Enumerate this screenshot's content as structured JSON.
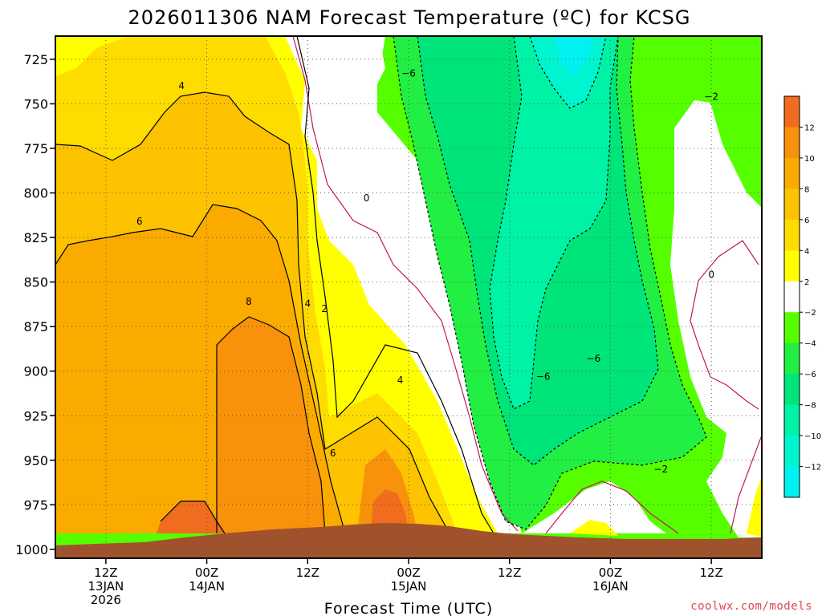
{
  "chart_data": {
    "type": "contour",
    "title": "2026011306 NAM Forecast Temperature (ºC) for KCSG",
    "xlabel": "Forecast Time (UTC)",
    "ylabel": "",
    "y_axis": {
      "scale": "pressure (inverted)",
      "ticks": [
        725,
        750,
        775,
        800,
        825,
        850,
        875,
        900,
        925,
        950,
        975,
        1000
      ],
      "range": [
        1005,
        712
      ]
    },
    "x_axis": {
      "range_hours": [
        0,
        84
      ],
      "ticks": [
        {
          "hour": 6,
          "lines": [
            "12Z",
            "13JAN",
            "2026"
          ]
        },
        {
          "hour": 18,
          "lines": [
            "00Z",
            "14JAN"
          ]
        },
        {
          "hour": 30,
          "lines": [
            "12Z"
          ]
        },
        {
          "hour": 42,
          "lines": [
            "00Z",
            "15JAN"
          ]
        },
        {
          "hour": 54,
          "lines": [
            "12Z"
          ]
        },
        {
          "hour": 66,
          "lines": [
            "00Z",
            "16JAN"
          ]
        },
        {
          "hour": 78,
          "lines": [
            "12Z"
          ]
        }
      ]
    },
    "contour_interval": 2,
    "colorbar": {
      "levels": [
        14,
        12,
        10,
        8,
        6,
        4,
        2,
        -2,
        -4,
        -6,
        -8,
        -10,
        -12,
        -14
      ],
      "labels": [
        "12",
        "10",
        "8",
        "6",
        "4",
        "2",
        "−2",
        "−4",
        "−6",
        "−8",
        "−10",
        "−12"
      ],
      "colors": [
        "#f06c1e",
        "#f8920a",
        "#fbaa00",
        "#fdc200",
        "#ffdc00",
        "#ffff00",
        "#ffffff",
        "#55ff00",
        "#22ef44",
        "#00e57a",
        "#00f2a6",
        "#00f5cf",
        "#00f1f1"
      ]
    },
    "contour_labels": [
      {
        "text": "4",
        "hour": 15,
        "p": 740
      },
      {
        "text": "6",
        "hour": 10,
        "p": 816
      },
      {
        "text": "8",
        "hour": 23,
        "p": 861
      },
      {
        "text": "4",
        "hour": 30,
        "p": 862
      },
      {
        "text": "2",
        "hour": 32,
        "p": 865
      },
      {
        "text": "6",
        "hour": 33,
        "p": 946
      },
      {
        "text": "4",
        "hour": 41,
        "p": 905
      },
      {
        "text": "0",
        "hour": 37,
        "p": 803
      },
      {
        "text": "−6",
        "hour": 42,
        "p": 733
      },
      {
        "text": "−6",
        "hour": 58,
        "p": 903
      },
      {
        "text": "−6",
        "hour": 64,
        "p": 893
      },
      {
        "text": "−2",
        "hour": 72,
        "p": 955
      },
      {
        "text": "−2",
        "hour": 78,
        "p": 746
      },
      {
        "text": "0",
        "hour": 78,
        "p": 846
      }
    ],
    "fields": {
      "warm_core_max_c": 10,
      "cold_core_min_c": -12,
      "terrain_color": "#a0522d"
    }
  },
  "credit": "coolwx.com/models"
}
